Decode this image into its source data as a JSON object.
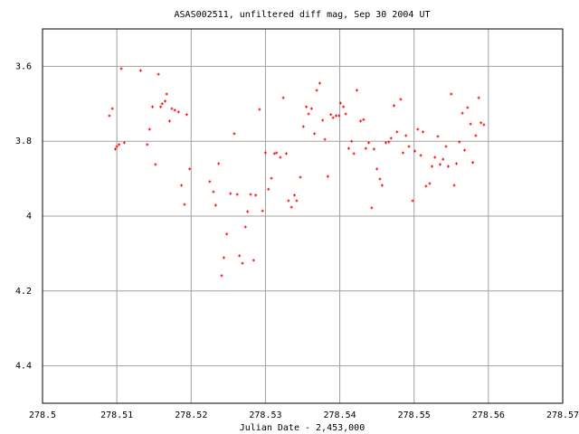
{
  "chart_data": {
    "type": "scatter",
    "title": "ASAS002511, unfiltered diff mag, Sep 30 2004 UT",
    "x_label": "Julian Date - 2,453,000",
    "color": "#ff0000",
    "grid": true,
    "xlim": [
      278.5,
      278.57
    ],
    "xticks": [
      278.5,
      278.51,
      278.52,
      278.53,
      278.54,
      278.55,
      278.56,
      278.57
    ],
    "ylim": [
      4.5,
      3.5
    ],
    "yticks": [
      3.6,
      3.8,
      4,
      4.2,
      4.4
    ],
    "x": [
      278.509,
      278.5094,
      278.5098,
      278.51,
      278.5103,
      278.5106,
      278.511,
      278.5132,
      278.5141,
      278.5144,
      278.5148,
      278.5152,
      278.5156,
      278.5159,
      278.5161,
      278.5165,
      278.5167,
      278.5171,
      278.5174,
      278.5178,
      278.5183,
      278.5187,
      278.5191,
      278.5194,
      278.5198,
      278.5225,
      278.523,
      278.5233,
      278.5237,
      278.5241,
      278.5244,
      278.5248,
      278.5253,
      278.5258,
      278.5262,
      278.5265,
      278.5269,
      278.5273,
      278.5276,
      278.528,
      278.5284,
      278.5287,
      278.5292,
      278.5296,
      278.53,
      278.5304,
      278.5308,
      278.5312,
      278.5315,
      278.532,
      278.5324,
      278.5328,
      278.5331,
      278.5335,
      278.5339,
      278.5342,
      278.5347,
      278.5351,
      278.5355,
      278.5358,
      278.5362,
      278.5366,
      278.5369,
      278.5373,
      278.5377,
      278.538,
      278.5384,
      278.5388,
      278.5391,
      278.5395,
      278.5399,
      278.5401,
      278.5405,
      278.5408,
      278.5412,
      278.5416,
      278.5419,
      278.5423,
      278.5428,
      278.5432,
      278.5435,
      278.5439,
      278.5443,
      278.5446,
      278.545,
      278.5454,
      278.5457,
      278.5462,
      278.5466,
      278.5469,
      278.5473,
      278.5477,
      278.5482,
      278.5485,
      278.5489,
      278.5493,
      278.5498,
      278.5501,
      278.5505,
      278.5509,
      278.5512,
      278.5516,
      278.5521,
      278.5524,
      278.5528,
      278.5532,
      278.5535,
      278.5539,
      278.5543,
      278.5546,
      278.555,
      278.5554,
      278.5557,
      278.5561,
      278.5565,
      278.5568,
      278.5572,
      278.5576,
      278.5579,
      278.5583,
      278.5587,
      278.559,
      278.5594
    ],
    "y": [
      3.732,
      3.713,
      3.821,
      3.814,
      3.809,
      3.606,
      3.804,
      3.611,
      3.809,
      3.768,
      3.708,
      3.862,
      3.621,
      3.708,
      3.7,
      3.693,
      3.674,
      3.746,
      3.713,
      3.717,
      3.722,
      3.918,
      3.969,
      3.729,
      3.874,
      3.908,
      3.935,
      3.971,
      3.86,
      4.159,
      4.111,
      4.048,
      3.94,
      3.78,
      3.942,
      4.106,
      4.126,
      4.029,
      3.988,
      3.942,
      4.118,
      3.944,
      3.715,
      3.986,
      3.831,
      3.928,
      3.899,
      3.833,
      3.831,
      3.843,
      3.684,
      3.833,
      3.959,
      3.976,
      3.944,
      3.959,
      3.896,
      3.761,
      3.708,
      3.727,
      3.713,
      3.78,
      3.664,
      3.645,
      3.744,
      3.795,
      3.894,
      3.729,
      3.737,
      3.732,
      3.732,
      3.698,
      3.708,
      3.727,
      3.819,
      3.8,
      3.833,
      3.664,
      3.746,
      3.742,
      3.819,
      3.804,
      3.978,
      3.821,
      3.874,
      3.901,
      3.918,
      3.804,
      3.802,
      3.792,
      3.705,
      3.775,
      3.688,
      3.831,
      3.785,
      3.814,
      3.959,
      3.826,
      3.768,
      3.838,
      3.775,
      3.92,
      3.913,
      3.867,
      3.843,
      3.787,
      3.862,
      3.848,
      3.814,
      3.867,
      3.674,
      3.918,
      3.86,
      3.802,
      3.725,
      3.824,
      3.71,
      3.754,
      3.857,
      3.785,
      3.684,
      3.751,
      3.756
    ]
  }
}
